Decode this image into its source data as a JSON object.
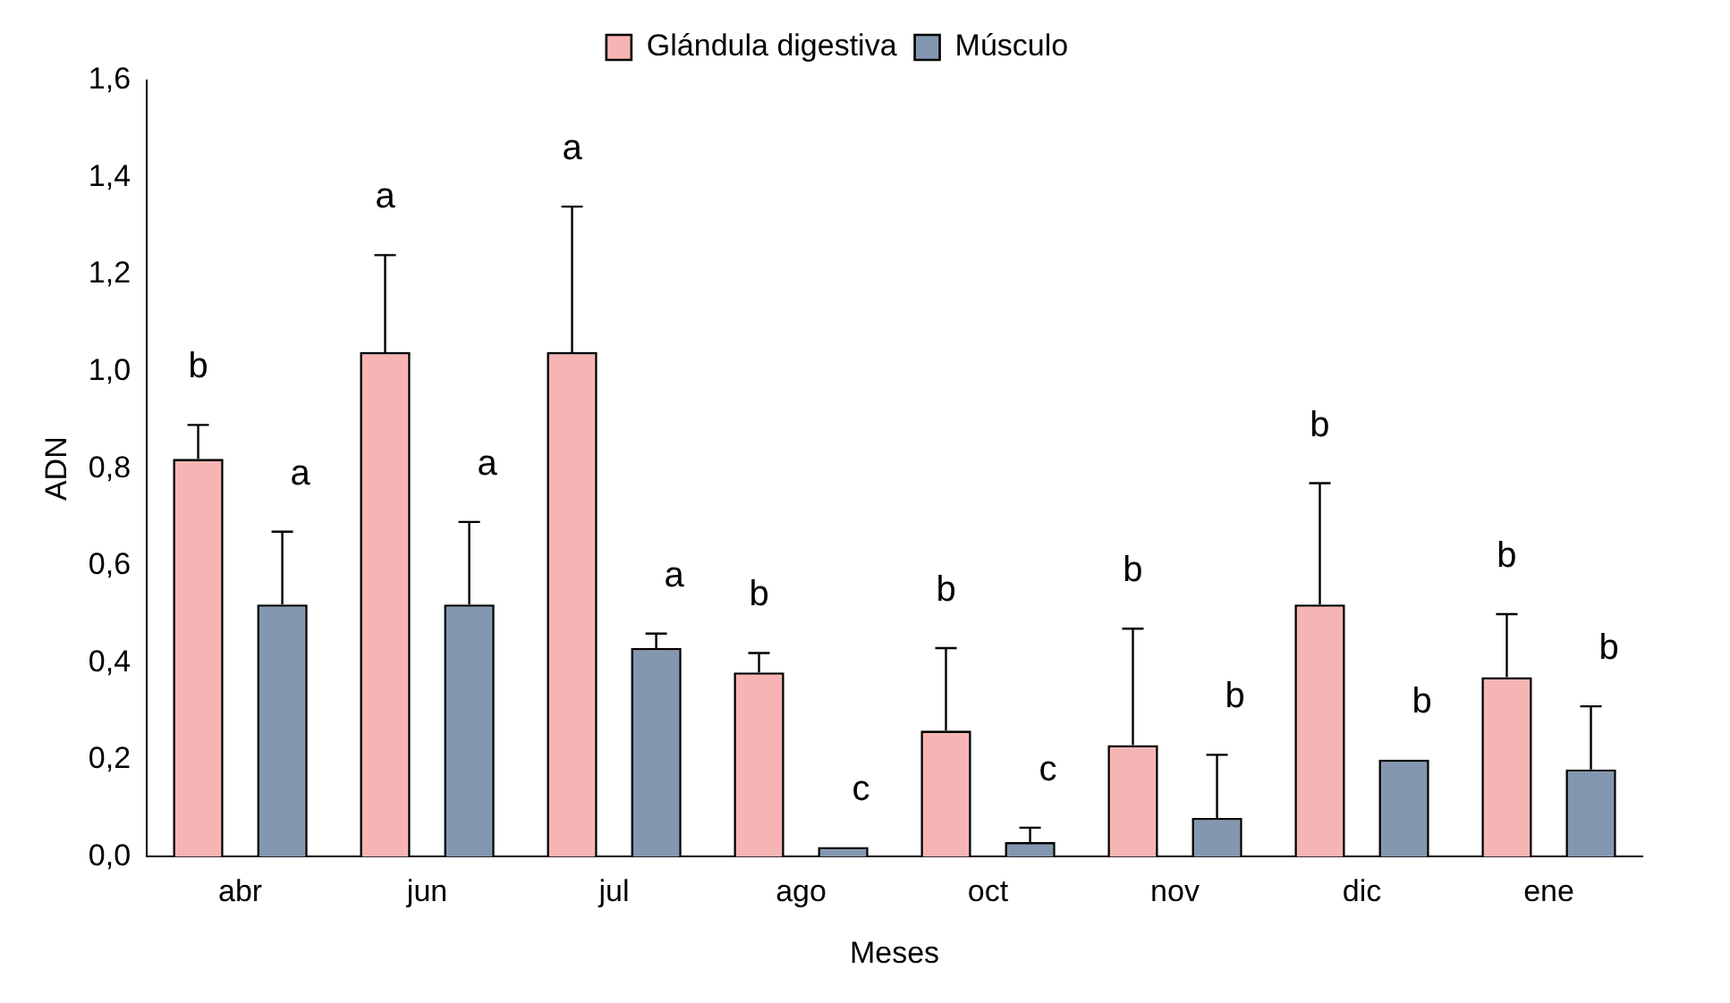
{
  "chart_data": {
    "type": "bar",
    "xlabel": "Meses",
    "ylabel": "ADN",
    "categories": [
      "abr",
      "jun",
      "jul",
      "ago",
      "oct",
      "nov",
      "dic",
      "ene"
    ],
    "series": [
      {
        "name": "Glándula digestiva",
        "color": "#f7b4b4",
        "values": [
          0.82,
          1.04,
          1.04,
          0.38,
          0.26,
          0.23,
          0.52,
          0.37
        ],
        "errors": [
          [
            0.82,
            0.89
          ],
          [
            1.04,
            1.24
          ],
          [
            1.04,
            1.34
          ],
          [
            0.38,
            0.42
          ],
          [
            0.26,
            0.43
          ],
          [
            0.23,
            0.47
          ],
          [
            0.52,
            0.77
          ],
          [
            0.37,
            0.5
          ]
        ]
      },
      {
        "name": "Músculo",
        "color": "#8497b0",
        "values": [
          0.52,
          0.52,
          0.43,
          0.02,
          0.03,
          0.08,
          0.2,
          0.18
        ],
        "errors": [
          [
            0.52,
            0.67
          ],
          [
            0.52,
            0.69
          ],
          [
            0.43,
            0.46
          ],
          null,
          [
            0.03,
            0.06
          ],
          [
            0.08,
            0.21
          ],
          null,
          [
            0.18,
            0.31
          ]
        ]
      }
    ],
    "ylim": [
      0,
      1.6
    ],
    "yticks": [
      {
        "value": 0,
        "label": "0,0"
      },
      {
        "value": 0.2,
        "label": "0,2"
      },
      {
        "value": 0.4,
        "label": "0,4"
      },
      {
        "value": 0.6,
        "label": "0,6"
      },
      {
        "value": 0.8,
        "label": "0,8"
      },
      {
        "value": 1,
        "label": "1,0"
      },
      {
        "value": 1.2,
        "label": "1,2"
      },
      {
        "value": 1.4,
        "label": "1,4"
      },
      {
        "value": 1.6,
        "label": "1,6"
      }
    ],
    "grid": false,
    "legend": "top",
    "annotations": [
      "b",
      "a",
      "a",
      "a",
      "a",
      "a",
      "b",
      "c",
      "b",
      "c",
      "b",
      "b",
      "b",
      "b",
      "b",
      "b"
    ]
  }
}
